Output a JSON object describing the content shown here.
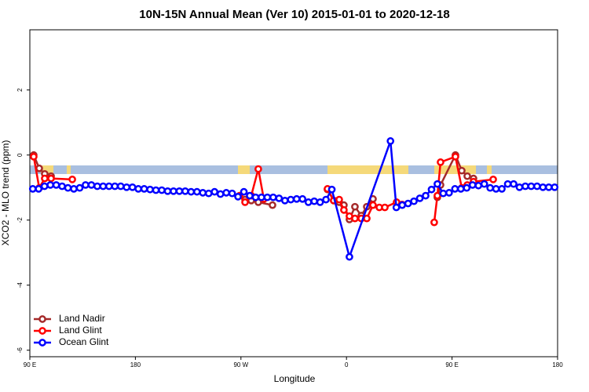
{
  "chart_data": {
    "type": "line",
    "title": "10N-15N Annual Mean (Ver 10)   2015-01-01 to 2020-12-18",
    "x_label": "Longitude",
    "y_label": "XCO2 - MLO trend (ppm)",
    "xlim": [
      90,
      540
    ],
    "xticks": [
      {
        "value": 90,
        "label": "90 E"
      },
      180,
      {
        "value": 270,
        "label": "90 W"
      },
      {
        "value": 360,
        "label": "0"
      },
      {
        "value": 450,
        "label": "90 E"
      },
      {
        "value": 540,
        "label": "180"
      }
    ],
    "ylim": [
      -6.2,
      3.85
    ],
    "yticks": [
      -6,
      -4,
      -2,
      0,
      2
    ],
    "legend": "bottom-left",
    "series": [
      {
        "name": "Land Nadir",
        "color": "#a52a2a",
        "x": [
          93.3,
          98,
          102.7,
          108.1,
          200,
          273.5,
          278.8,
          284.8,
          296.9,
          320,
          343.8,
          349.1,
          353.8,
          357.8,
          362.5,
          367.2,
          372.6,
          377.3,
          382.6,
          400,
          437.5,
          440.2,
          452.9,
          458.3,
          463,
          468.3
        ],
        "values": [
          0,
          -0.41,
          -0.58,
          -0.65,
          null,
          -1.37,
          -1.4,
          -1.45,
          -1.54,
          null,
          -1.06,
          -1.4,
          -1.45,
          -1.54,
          -1.98,
          -1.59,
          -1.86,
          -1.59,
          -1.35,
          null,
          -1.3,
          -0.92,
          0,
          -0.48,
          -0.65,
          -0.72
        ]
      },
      {
        "name": "Land Glint",
        "color": "#ff0000",
        "x": [
          93.3,
          98,
          102.7,
          108.1,
          126.2,
          200,
          268.8,
          273.5,
          278.8,
          284.8,
          289.5,
          320,
          343.8,
          349.1,
          353.8,
          357.8,
          362.5,
          367.2,
          372.6,
          377.3,
          382.6,
          388,
          392.7,
          402.7,
          407.4,
          420,
          434.8,
          437.5,
          440.2,
          452.9,
          458.3,
          463,
          468.3,
          485.1
        ],
        "values": [
          -0.05,
          -1.01,
          -0.72,
          -0.72,
          -0.75,
          null,
          -1.25,
          -1.45,
          -1.25,
          -0.43,
          -1.35,
          null,
          -1.04,
          -1.4,
          -1.37,
          -1.69,
          -1.88,
          -1.95,
          -1.95,
          -1.95,
          -1.54,
          -1.61,
          -1.61,
          -1.45,
          -1.52,
          null,
          -2.07,
          -1.25,
          -0.22,
          -0.05,
          -1.01,
          -0.92,
          -0.82,
          -0.75
        ]
      },
      {
        "name": "Ocean Glint",
        "color": "#0000ff",
        "x": [
          92.5,
          97.5,
          102.5,
          107.5,
          112.5,
          117.5,
          122.5,
          127.5,
          132.5,
          137.5,
          142.5,
          147.5,
          152.5,
          157.5,
          162.5,
          167.5,
          172.5,
          177.5,
          182.5,
          187.5,
          192.5,
          197.5,
          202.5,
          207.5,
          212.5,
          217.5,
          222.5,
          227.5,
          232.5,
          237.5,
          242.5,
          247.5,
          252.5,
          257.5,
          262.5,
          267.5,
          272.5,
          277.5,
          282.5,
          287.5,
          292.5,
          297.5,
          302.5,
          307.5,
          312.5,
          317.5,
          322.5,
          327.5,
          332.5,
          337.5,
          342.5,
          347.5,
          362.5,
          397.5,
          402.5,
          407.5,
          412.5,
          417.5,
          422.5,
          427.5,
          432.5,
          437.5,
          442.5,
          447.5,
          452.5,
          457.5,
          462.5,
          467.5,
          472.5,
          477.5,
          482.5,
          487.5,
          492.5,
          497.5,
          502.5,
          507.5,
          512.5,
          517.5,
          522.5,
          527.5,
          532.5,
          537.5
        ],
        "values": [
          -1.04,
          -1.04,
          -0.96,
          -0.92,
          -0.92,
          -0.96,
          -1.01,
          -1.04,
          -1.01,
          -0.92,
          -0.92,
          -0.96,
          -0.96,
          -0.96,
          -0.96,
          -0.96,
          -0.99,
          -0.99,
          -1.04,
          -1.04,
          -1.06,
          -1.08,
          -1.08,
          -1.11,
          -1.11,
          -1.11,
          -1.11,
          -1.13,
          -1.13,
          -1.16,
          -1.18,
          -1.13,
          -1.2,
          -1.16,
          -1.18,
          -1.28,
          -1.13,
          -1.25,
          -1.3,
          -1.3,
          -1.3,
          -1.3,
          -1.33,
          -1.4,
          -1.37,
          -1.35,
          -1.35,
          -1.45,
          -1.42,
          -1.45,
          -1.37,
          -1.06,
          -3.13,
          0.43,
          -1.61,
          -1.54,
          -1.49,
          -1.42,
          -1.33,
          -1.25,
          -1.06,
          -0.89,
          -1.18,
          -1.16,
          -1.04,
          -1.04,
          -1.01,
          -0.92,
          -0.94,
          -0.89,
          -1.01,
          -1.04,
          -1.04,
          -0.89,
          -0.89,
          -0.99,
          -0.96,
          -0.96,
          -0.96,
          -0.99,
          -0.99,
          -0.99
        ]
      }
    ]
  }
}
